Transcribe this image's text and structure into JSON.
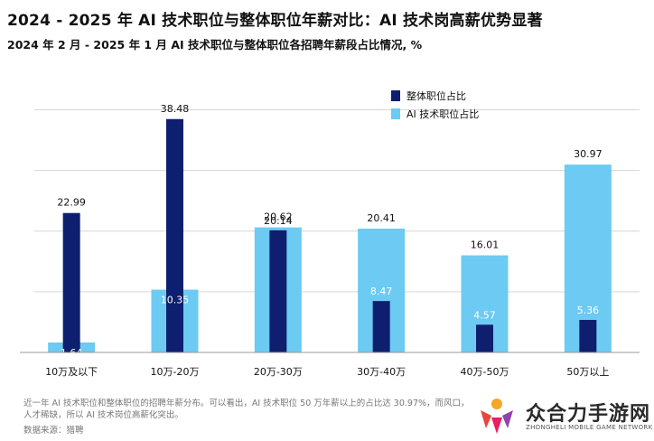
{
  "title": "2024 - 2025 年 AI 技术职位与整体职位年薪对比：AI 技术岗高薪优势显著",
  "subtitle": "2024 年 2 月 - 2025 年 1 月 AI 技术职位与整体职位各招聘年薪段占比情况, %",
  "footnote": "近一年 AI 技术职位和整体职位的招聘年薪分布。可以看出，AI 技术职位 50 万年薪以上的占比达 30.97%，而风口，人才稀缺，所以 AI 技术岗位高薪化突出。",
  "source": "数据来源：猎聘",
  "watermark": {
    "name": "众合力手游网",
    "sub": "ZHONGHELI MOBILE GAME NETWORK",
    "colors": [
      "#e8453c",
      "#f5a623",
      "#8e44ad",
      "#e91e63"
    ]
  },
  "chart_data": {
    "type": "bar",
    "categories": [
      "10万及以下",
      "10万-20万",
      "20万-30万",
      "30万-40万",
      "40万-50万",
      "50万以上"
    ],
    "series": [
      {
        "name": "整体职位占比",
        "color": "#0d1f6e",
        "values": [
          22.99,
          38.48,
          20.14,
          8.47,
          4.57,
          5.36
        ]
      },
      {
        "name": "AI 技术职位占比",
        "color": "#6ccaf3",
        "values": [
          1.64,
          10.35,
          20.62,
          20.41,
          16.01,
          30.97
        ]
      }
    ],
    "ylim": [
      0,
      45
    ],
    "grid": true,
    "legend_position": "top-right"
  }
}
